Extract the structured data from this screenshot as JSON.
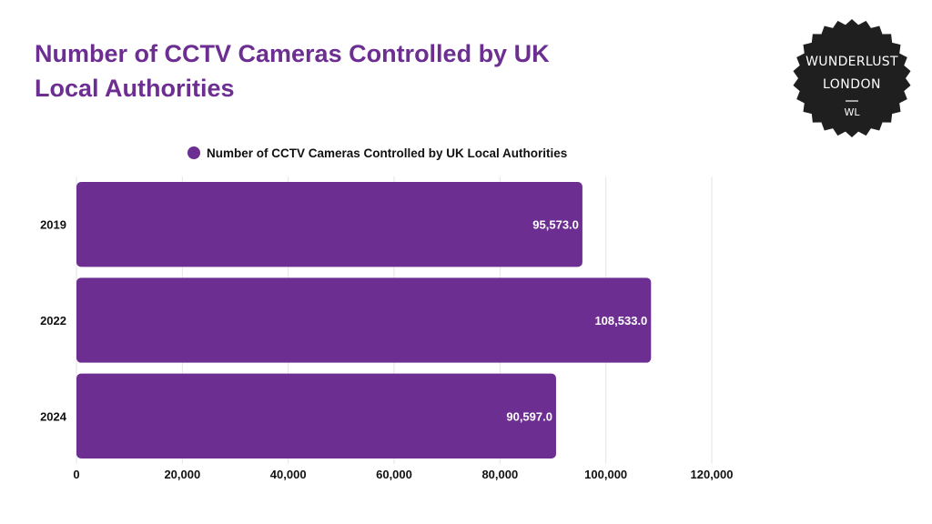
{
  "colors": {
    "bar": "#6c2e91",
    "title": "#6c2e91",
    "badge_bg": "#1f1f1f",
    "badge_text": "#ffffff",
    "grid": "#e6e6e6"
  },
  "logo": {
    "line1": "WUNDERLUST",
    "line2": "LONDON",
    "monogram": "WL"
  },
  "chart_data": {
    "type": "bar",
    "orientation": "horizontal",
    "title": "Number of CCTV Cameras Controlled by UK Local Authorities",
    "categories": [
      "2019",
      "2022",
      "2024"
    ],
    "series": [
      {
        "name": "Number of CCTV Cameras Controlled by UK Local Authorities",
        "values": [
          95573,
          108533,
          90597
        ],
        "labels": [
          "95,573.0",
          "108,533.0",
          "90,597.0"
        ]
      }
    ],
    "x_ticks": [
      "0",
      "20,000",
      "40,000",
      "60,000",
      "80,000",
      "100,000",
      "120,000"
    ],
    "xlim": [
      0,
      120000
    ],
    "grid": true,
    "legend_position": "top-center"
  }
}
